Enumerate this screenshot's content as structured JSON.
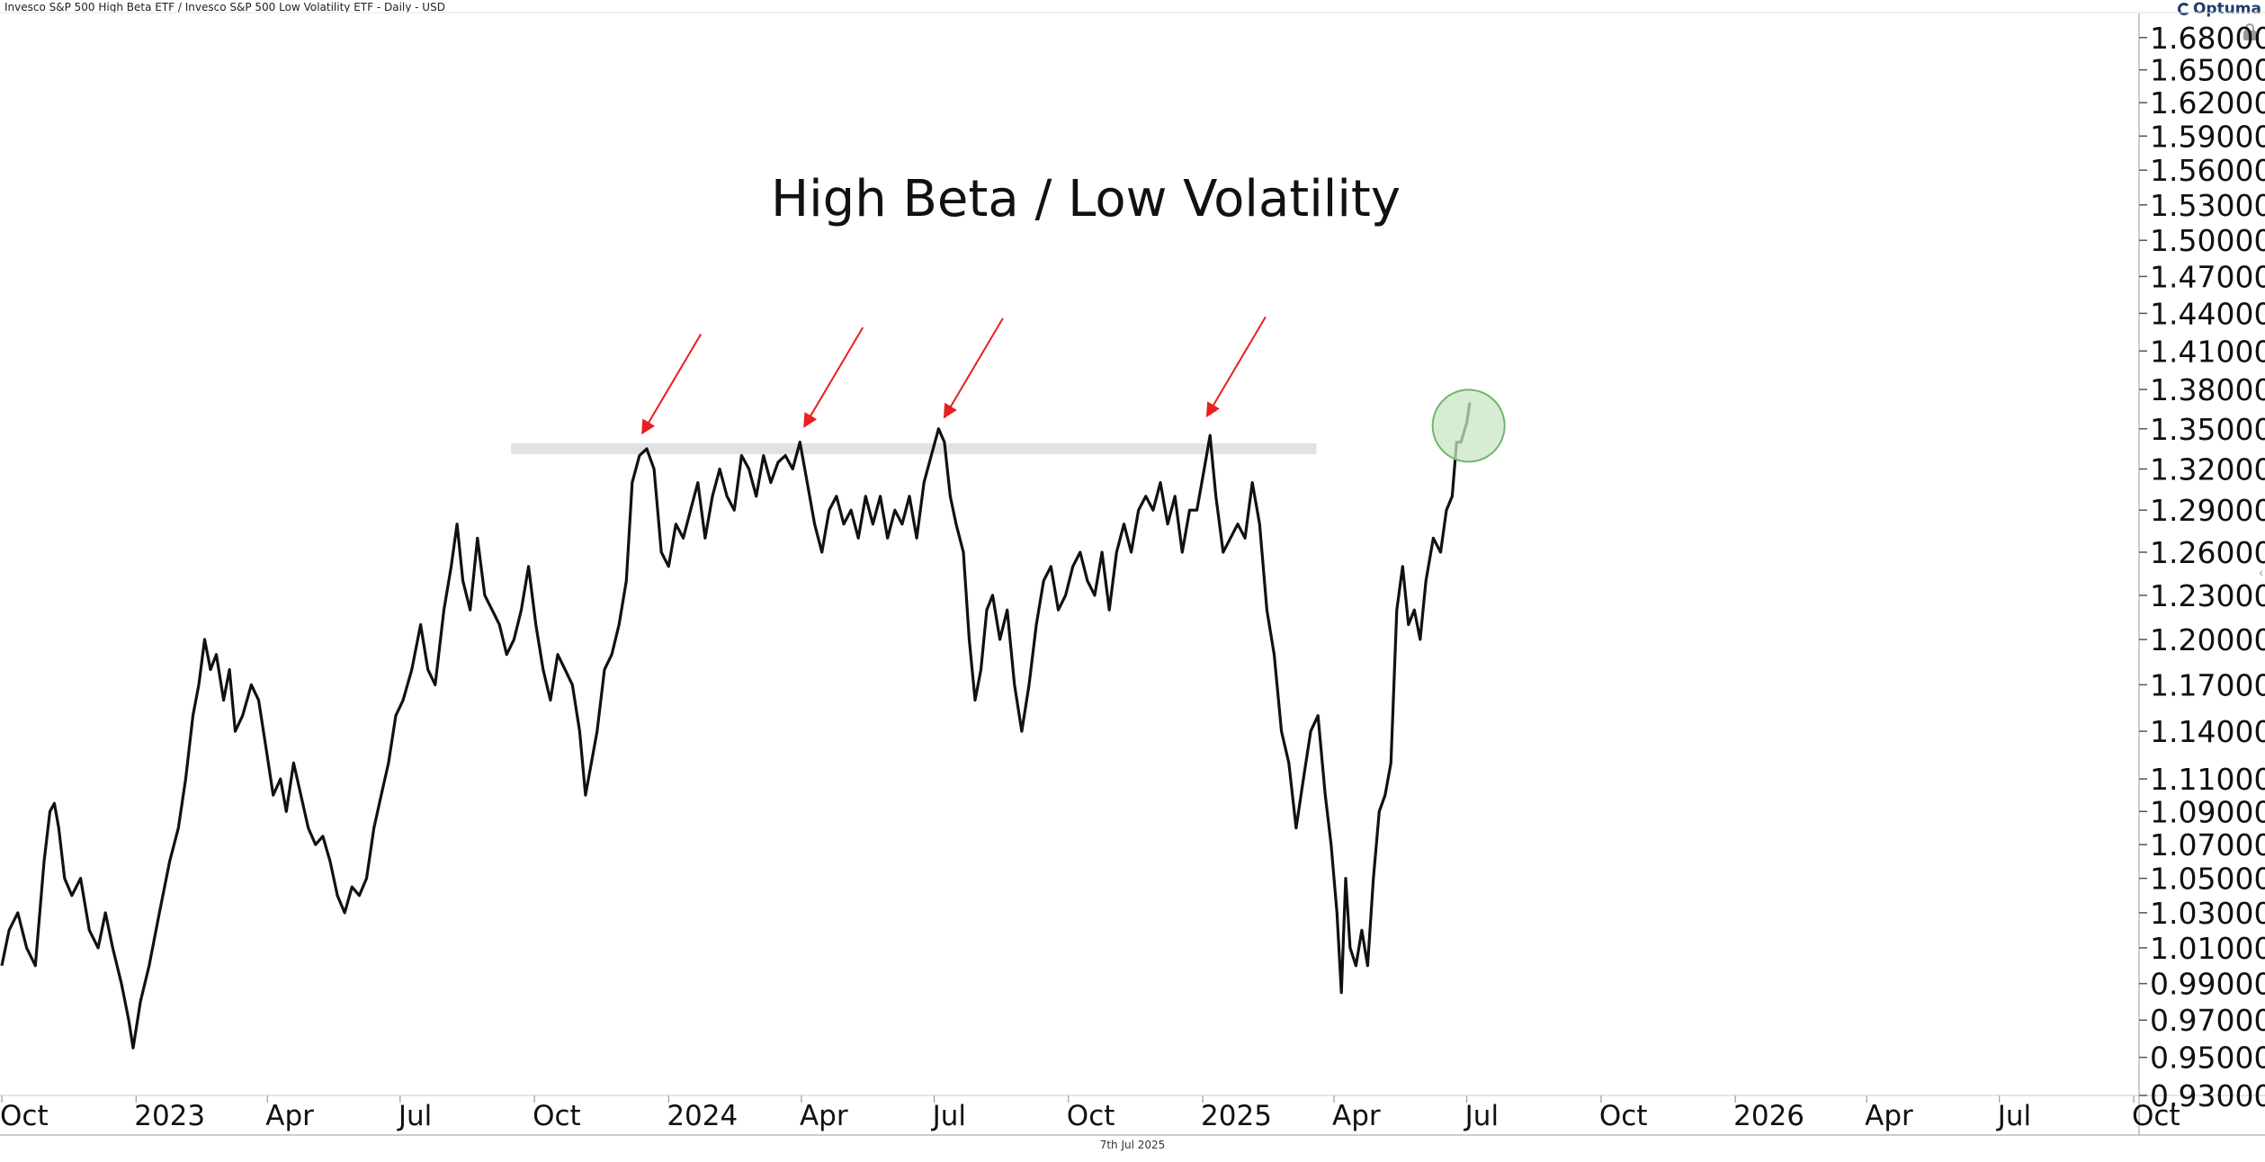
{
  "header": {
    "title": "Invesco S&P 500 High Beta ETF / Invesco S&P 500 Low Volatility ETF - Daily - USD",
    "brand": "Optuma"
  },
  "footer": {
    "date": "7th Jul 2025"
  },
  "colors": {
    "line": "#111111",
    "resistance_band": "#e2e2e2",
    "arrow": "#e8201e",
    "circle_fill": "#c9e7c4",
    "circle_stroke": "#6fb56b"
  },
  "chart_data": {
    "type": "line",
    "title": "High Beta / Low Volatility",
    "scale": "log",
    "y_ticks": [
      0.93,
      0.95,
      0.97,
      0.99,
      1.01,
      1.03,
      1.05,
      1.07,
      1.09,
      1.11,
      1.14,
      1.17,
      1.2,
      1.23,
      1.26,
      1.29,
      1.32,
      1.35,
      1.38,
      1.41,
      1.44,
      1.47,
      1.5,
      1.53,
      1.56,
      1.59,
      1.62,
      1.65,
      1.68
    ],
    "y_tick_labels": [
      "0.93000",
      "0.95000",
      "0.97000",
      "0.99000",
      "1.01000",
      "1.03000",
      "1.05000",
      "1.07000",
      "1.09000",
      "1.11000",
      "1.14000",
      "1.17000",
      "1.20000",
      "1.23000",
      "1.26000",
      "1.29000",
      "1.32000",
      "1.35000",
      "1.38000",
      "1.41000",
      "1.44000",
      "1.47000",
      "1.50000",
      "1.53000",
      "1.56000",
      "1.59000",
      "1.62000",
      "1.65000",
      "1.68000"
    ],
    "x_tick_labels": [
      "Oct",
      "2023",
      "Apr",
      "Jul",
      "Oct",
      "2024",
      "Apr",
      "Jul",
      "Oct",
      "2025",
      "Apr",
      "Jul",
      "Oct",
      "2026",
      "Apr",
      "Jul",
      "Oct"
    ],
    "x_tick_dates": [
      "2022-10-01",
      "2023-01-01",
      "2023-04-01",
      "2023-07-01",
      "2023-10-01",
      "2024-01-01",
      "2024-04-01",
      "2024-07-01",
      "2024-10-01",
      "2025-01-01",
      "2025-04-01",
      "2025-07-01",
      "2025-10-01",
      "2026-01-01",
      "2026-04-01",
      "2026-07-01",
      "2026-10-01"
    ],
    "x_range": [
      "2022-10-01",
      "2026-10-01"
    ],
    "y_range": [
      0.93,
      1.69
    ],
    "grid": false,
    "series": [
      {
        "values": [
          [
            "2022-10-01",
            1.0
          ],
          [
            "2022-10-06",
            1.02
          ],
          [
            "2022-10-12",
            1.03
          ],
          [
            "2022-10-18",
            1.01
          ],
          [
            "2022-10-24",
            1.0
          ],
          [
            "2022-10-30",
            1.06
          ],
          [
            "2022-11-03",
            1.09
          ],
          [
            "2022-11-06",
            1.095
          ],
          [
            "2022-11-09",
            1.08
          ],
          [
            "2022-11-13",
            1.05
          ],
          [
            "2022-11-18",
            1.04
          ],
          [
            "2022-11-24",
            1.05
          ],
          [
            "2022-11-30",
            1.02
          ],
          [
            "2022-12-06",
            1.01
          ],
          [
            "2022-12-11",
            1.03
          ],
          [
            "2022-12-16",
            1.01
          ],
          [
            "2022-12-22",
            0.99
          ],
          [
            "2022-12-27",
            0.97
          ],
          [
            "2022-12-30",
            0.955
          ],
          [
            "2023-01-04",
            0.98
          ],
          [
            "2023-01-10",
            1.0
          ],
          [
            "2023-01-17",
            1.03
          ],
          [
            "2023-01-24",
            1.06
          ],
          [
            "2023-01-30",
            1.08
          ],
          [
            "2023-02-04",
            1.11
          ],
          [
            "2023-02-09",
            1.15
          ],
          [
            "2023-02-13",
            1.17
          ],
          [
            "2023-02-17",
            1.2
          ],
          [
            "2023-02-21",
            1.18
          ],
          [
            "2023-02-25",
            1.19
          ],
          [
            "2023-03-02",
            1.16
          ],
          [
            "2023-03-06",
            1.18
          ],
          [
            "2023-03-10",
            1.14
          ],
          [
            "2023-03-15",
            1.15
          ],
          [
            "2023-03-21",
            1.17
          ],
          [
            "2023-03-26",
            1.16
          ],
          [
            "2023-03-31",
            1.13
          ],
          [
            "2023-04-05",
            1.1
          ],
          [
            "2023-04-10",
            1.11
          ],
          [
            "2023-04-14",
            1.09
          ],
          [
            "2023-04-19",
            1.12
          ],
          [
            "2023-04-24",
            1.1
          ],
          [
            "2023-04-29",
            1.08
          ],
          [
            "2023-05-04",
            1.07
          ],
          [
            "2023-05-09",
            1.075
          ],
          [
            "2023-05-14",
            1.06
          ],
          [
            "2023-05-19",
            1.04
          ],
          [
            "2023-05-24",
            1.03
          ],
          [
            "2023-05-29",
            1.045
          ],
          [
            "2023-06-03",
            1.04
          ],
          [
            "2023-06-08",
            1.05
          ],
          [
            "2023-06-13",
            1.08
          ],
          [
            "2023-06-18",
            1.1
          ],
          [
            "2023-06-23",
            1.12
          ],
          [
            "2023-06-28",
            1.15
          ],
          [
            "2023-07-03",
            1.16
          ],
          [
            "2023-07-09",
            1.18
          ],
          [
            "2023-07-15",
            1.21
          ],
          [
            "2023-07-20",
            1.18
          ],
          [
            "2023-07-25",
            1.17
          ],
          [
            "2023-07-31",
            1.22
          ],
          [
            "2023-08-05",
            1.25
          ],
          [
            "2023-08-09",
            1.28
          ],
          [
            "2023-08-13",
            1.24
          ],
          [
            "2023-08-18",
            1.22
          ],
          [
            "2023-08-23",
            1.27
          ],
          [
            "2023-08-28",
            1.23
          ],
          [
            "2023-09-02",
            1.22
          ],
          [
            "2023-09-07",
            1.21
          ],
          [
            "2023-09-12",
            1.19
          ],
          [
            "2023-09-17",
            1.2
          ],
          [
            "2023-09-22",
            1.22
          ],
          [
            "2023-09-27",
            1.25
          ],
          [
            "2023-10-02",
            1.21
          ],
          [
            "2023-10-07",
            1.18
          ],
          [
            "2023-10-12",
            1.16
          ],
          [
            "2023-10-17",
            1.19
          ],
          [
            "2023-10-22",
            1.18
          ],
          [
            "2023-10-27",
            1.17
          ],
          [
            "2023-11-01",
            1.14
          ],
          [
            "2023-11-05",
            1.1
          ],
          [
            "2023-11-09",
            1.12
          ],
          [
            "2023-11-13",
            1.14
          ],
          [
            "2023-11-18",
            1.18
          ],
          [
            "2023-11-23",
            1.19
          ],
          [
            "2023-11-28",
            1.21
          ],
          [
            "2023-12-03",
            1.24
          ],
          [
            "2023-12-07",
            1.31
          ],
          [
            "2023-12-12",
            1.33
          ],
          [
            "2023-12-17",
            1.335
          ],
          [
            "2023-12-22",
            1.32
          ],
          [
            "2023-12-27",
            1.26
          ],
          [
            "2024-01-01",
            1.25
          ],
          [
            "2024-01-06",
            1.28
          ],
          [
            "2024-01-11",
            1.27
          ],
          [
            "2024-01-16",
            1.29
          ],
          [
            "2024-01-21",
            1.31
          ],
          [
            "2024-01-26",
            1.27
          ],
          [
            "2024-01-31",
            1.3
          ],
          [
            "2024-02-05",
            1.32
          ],
          [
            "2024-02-10",
            1.3
          ],
          [
            "2024-02-15",
            1.29
          ],
          [
            "2024-02-20",
            1.33
          ],
          [
            "2024-02-25",
            1.32
          ],
          [
            "2024-03-01",
            1.3
          ],
          [
            "2024-03-06",
            1.33
          ],
          [
            "2024-03-11",
            1.31
          ],
          [
            "2024-03-16",
            1.325
          ],
          [
            "2024-03-21",
            1.33
          ],
          [
            "2024-03-26",
            1.32
          ],
          [
            "2024-03-31",
            1.34
          ],
          [
            "2024-04-05",
            1.31
          ],
          [
            "2024-04-10",
            1.28
          ],
          [
            "2024-04-15",
            1.26
          ],
          [
            "2024-04-20",
            1.29
          ],
          [
            "2024-04-25",
            1.3
          ],
          [
            "2024-04-30",
            1.28
          ],
          [
            "2024-05-05",
            1.29
          ],
          [
            "2024-05-10",
            1.27
          ],
          [
            "2024-05-15",
            1.3
          ],
          [
            "2024-05-20",
            1.28
          ],
          [
            "2024-05-25",
            1.3
          ],
          [
            "2024-05-30",
            1.27
          ],
          [
            "2024-06-04",
            1.29
          ],
          [
            "2024-06-09",
            1.28
          ],
          [
            "2024-06-14",
            1.3
          ],
          [
            "2024-06-19",
            1.27
          ],
          [
            "2024-06-24",
            1.31
          ],
          [
            "2024-06-29",
            1.33
          ],
          [
            "2024-07-04",
            1.35
          ],
          [
            "2024-07-08",
            1.34
          ],
          [
            "2024-07-12",
            1.3
          ],
          [
            "2024-07-16",
            1.28
          ],
          [
            "2024-07-21",
            1.26
          ],
          [
            "2024-07-25",
            1.2
          ],
          [
            "2024-07-29",
            1.16
          ],
          [
            "2024-08-02",
            1.18
          ],
          [
            "2024-08-06",
            1.22
          ],
          [
            "2024-08-10",
            1.23
          ],
          [
            "2024-08-15",
            1.2
          ],
          [
            "2024-08-20",
            1.22
          ],
          [
            "2024-08-25",
            1.17
          ],
          [
            "2024-08-30",
            1.14
          ],
          [
            "2024-09-04",
            1.17
          ],
          [
            "2024-09-09",
            1.21
          ],
          [
            "2024-09-14",
            1.24
          ],
          [
            "2024-09-19",
            1.25
          ],
          [
            "2024-09-24",
            1.22
          ],
          [
            "2024-09-29",
            1.23
          ],
          [
            "2024-10-04",
            1.25
          ],
          [
            "2024-10-09",
            1.26
          ],
          [
            "2024-10-14",
            1.24
          ],
          [
            "2024-10-19",
            1.23
          ],
          [
            "2024-10-24",
            1.26
          ],
          [
            "2024-10-29",
            1.22
          ],
          [
            "2024-11-03",
            1.26
          ],
          [
            "2024-11-08",
            1.28
          ],
          [
            "2024-11-13",
            1.26
          ],
          [
            "2024-11-18",
            1.29
          ],
          [
            "2024-11-23",
            1.3
          ],
          [
            "2024-11-28",
            1.29
          ],
          [
            "2024-12-03",
            1.31
          ],
          [
            "2024-12-08",
            1.28
          ],
          [
            "2024-12-13",
            1.3
          ],
          [
            "2024-12-18",
            1.26
          ],
          [
            "2024-12-23",
            1.29
          ],
          [
            "2024-12-28",
            1.29
          ],
          [
            "2025-01-02",
            1.32
          ],
          [
            "2025-01-06",
            1.345
          ],
          [
            "2025-01-10",
            1.3
          ],
          [
            "2025-01-15",
            1.26
          ],
          [
            "2025-01-20",
            1.27
          ],
          [
            "2025-01-25",
            1.28
          ],
          [
            "2025-01-30",
            1.27
          ],
          [
            "2025-02-04",
            1.31
          ],
          [
            "2025-02-09",
            1.28
          ],
          [
            "2025-02-14",
            1.22
          ],
          [
            "2025-02-19",
            1.19
          ],
          [
            "2025-02-24",
            1.14
          ],
          [
            "2025-03-01",
            1.12
          ],
          [
            "2025-03-06",
            1.08
          ],
          [
            "2025-03-11",
            1.11
          ],
          [
            "2025-03-16",
            1.14
          ],
          [
            "2025-03-21",
            1.15
          ],
          [
            "2025-03-26",
            1.1
          ],
          [
            "2025-03-30",
            1.07
          ],
          [
            "2025-04-03",
            1.03
          ],
          [
            "2025-04-06",
            0.985
          ],
          [
            "2025-04-09",
            1.05
          ],
          [
            "2025-04-12",
            1.01
          ],
          [
            "2025-04-16",
            1.0
          ],
          [
            "2025-04-20",
            1.02
          ],
          [
            "2025-04-24",
            1.0
          ],
          [
            "2025-04-28",
            1.05
          ],
          [
            "2025-05-02",
            1.09
          ],
          [
            "2025-05-06",
            1.1
          ],
          [
            "2025-05-10",
            1.12
          ],
          [
            "2025-05-14",
            1.22
          ],
          [
            "2025-05-18",
            1.25
          ],
          [
            "2025-05-22",
            1.21
          ],
          [
            "2025-05-26",
            1.22
          ],
          [
            "2025-05-30",
            1.2
          ],
          [
            "2025-06-03",
            1.24
          ],
          [
            "2025-06-08",
            1.27
          ],
          [
            "2025-06-13",
            1.26
          ],
          [
            "2025-06-17",
            1.29
          ],
          [
            "2025-06-21",
            1.3
          ],
          [
            "2025-06-24",
            1.34
          ],
          [
            "2025-06-27",
            1.34
          ],
          [
            "2025-07-01",
            1.355
          ],
          [
            "2025-07-03",
            1.37
          ]
        ]
      }
    ],
    "resistance_band": {
      "from": "2023-09-15",
      "to": "2025-03-20",
      "y": 1.335
    },
    "annotations": {
      "arrow_targets": [
        {
          "date": "2023-12-14",
          "value": 1.34
        },
        {
          "date": "2024-04-03",
          "value": 1.345
        },
        {
          "date": "2024-07-08",
          "value": 1.352
        },
        {
          "date": "2025-01-04",
          "value": 1.353
        }
      ],
      "highlight_circle": {
        "date": "2025-07-01",
        "value": 1.355
      }
    }
  }
}
